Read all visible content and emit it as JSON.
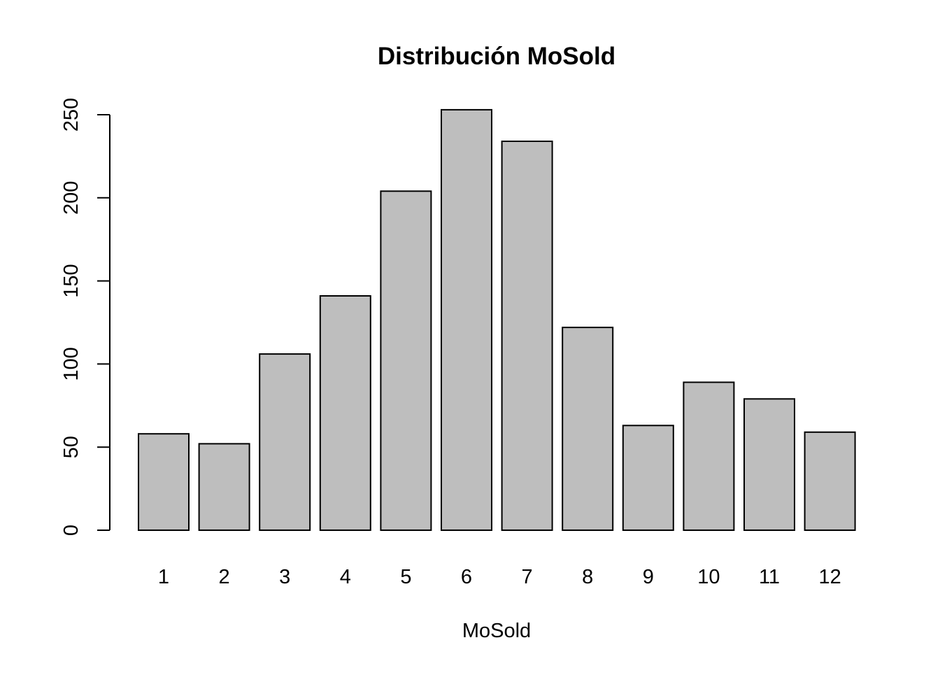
{
  "chart_data": {
    "type": "bar",
    "title": "Distribución MoSold",
    "xlabel": "MoSold",
    "ylabel": "",
    "categories": [
      "1",
      "2",
      "3",
      "4",
      "5",
      "6",
      "7",
      "8",
      "9",
      "10",
      "11",
      "12"
    ],
    "values": [
      58,
      52,
      106,
      141,
      204,
      253,
      234,
      122,
      63,
      89,
      79,
      59
    ],
    "ylim": [
      0,
      250
    ],
    "yticks": [
      "0",
      "50",
      "100",
      "150",
      "200",
      "250"
    ],
    "grid": false,
    "legend": "none",
    "colors": {
      "bar_fill": "#bebebe",
      "bar_stroke": "#000000",
      "axis": "#000000"
    }
  }
}
